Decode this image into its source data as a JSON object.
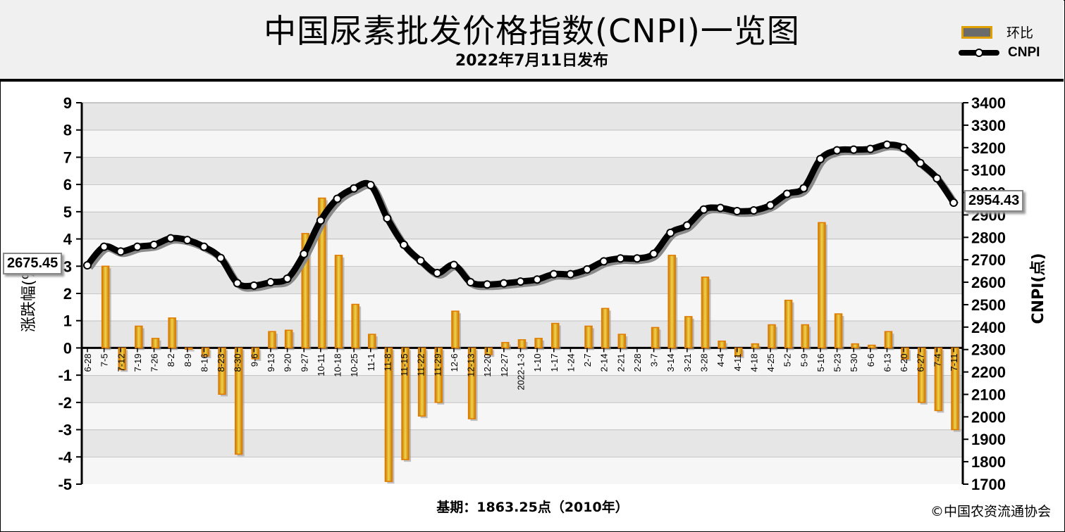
{
  "title": "中国尿素批发价格指数(CNPI)一览图",
  "subtitle": "2022年7月11日发布",
  "legend": {
    "bar_label": "环比",
    "line_label": "CNPI"
  },
  "footer": {
    "base_period": "基期：1863.25点（2010年）",
    "copyright": "©中国农资流通协会"
  },
  "callouts": {
    "first": "2675.45",
    "last": "2954.43"
  },
  "colors": {
    "bar_fill": "#d4a017",
    "bar_edge": "#e07b00",
    "line": "#000000",
    "header_bg": "#f0f0f0",
    "plot_band": "#e8e8e8"
  },
  "chart_data": {
    "type": "bar+line",
    "title": "中国尿素批发价格指数(CNPI)一览图",
    "subtitle": "2022年7月11日发布",
    "ylabel_left": "涨跌幅(%)",
    "ylabel_right": "CNPI(点)",
    "ylim_left": [
      -5,
      9
    ],
    "ylim_right": [
      1700,
      3400
    ],
    "yticks_left": [
      "9",
      "8",
      "7",
      "6",
      "5",
      "4",
      "3",
      "2",
      "1",
      "0",
      "-1",
      "-2",
      "-3",
      "-4",
      "-5"
    ],
    "yticks_right": [
      "3400",
      "3300",
      "3200",
      "3100",
      "3000",
      "2900",
      "2800",
      "2700",
      "2600",
      "2500",
      "2400",
      "2300",
      "2200",
      "2100",
      "2000",
      "1900",
      "1800",
      "1700"
    ],
    "grid": true,
    "legend_position": "top-right",
    "categories": [
      "6-28",
      "7-5",
      "7-12",
      "7-19",
      "7-26",
      "8-2",
      "8-9",
      "8-16",
      "8-23",
      "8-30",
      "9-6",
      "9-13",
      "9-20",
      "9-27",
      "10-11",
      "10-18",
      "10-25",
      "11-1",
      "11-8",
      "11-15",
      "11-22",
      "11-29",
      "12-6",
      "12-13",
      "12-20",
      "12-27",
      "2022-1-3",
      "1-10",
      "1-17",
      "1-24",
      "2-7",
      "2-14",
      "2-21",
      "2-28",
      "3-7",
      "3-14",
      "3-21",
      "3-28",
      "4-4",
      "4-11",
      "4-18",
      "4-25",
      "5-2",
      "5-9",
      "5-16",
      "5-23",
      "5-30",
      "6-6",
      "6-13",
      "6-20",
      "6-27",
      "7-4",
      "7-11"
    ],
    "series": [
      {
        "name": "环比",
        "type": "bar",
        "values": [
          0,
          3.0,
          -0.8,
          0.8,
          0.35,
          1.1,
          -0.05,
          -0.3,
          -1.7,
          -3.9,
          -0.4,
          0.6,
          0.65,
          4.2,
          5.5,
          3.4,
          1.6,
          0.5,
          -4.9,
          -4.1,
          -2.5,
          -2.0,
          1.35,
          -2.6,
          -0.25,
          0.2,
          0.3,
          0.35,
          0.9,
          0,
          0.8,
          1.45,
          0.5,
          0,
          0.75,
          3.4,
          1.15,
          2.6,
          0.25,
          -0.3,
          0.15,
          0.85,
          1.75,
          0.85,
          4.6,
          1.25,
          0.15,
          0.1,
          0.6,
          -0.4,
          -2.0,
          -2.3,
          -3.0
        ]
      },
      {
        "name": "CNPI",
        "type": "line",
        "values": [
          2675.45,
          2758,
          2737,
          2758,
          2767,
          2796,
          2788,
          2758,
          2708,
          2596,
          2585,
          2600,
          2616,
          2726,
          2875,
          2972,
          3018,
          3033,
          2885,
          2767,
          2696,
          2641,
          2677,
          2600,
          2590,
          2595,
          2603,
          2612,
          2636,
          2636,
          2657,
          2693,
          2706,
          2706,
          2727,
          2820,
          2853,
          2924,
          2931,
          2917,
          2920,
          2943,
          2994,
          3019,
          3149,
          3188,
          3191,
          3194,
          3213,
          3199,
          3131,
          3063,
          2954.43
        ]
      }
    ]
  }
}
